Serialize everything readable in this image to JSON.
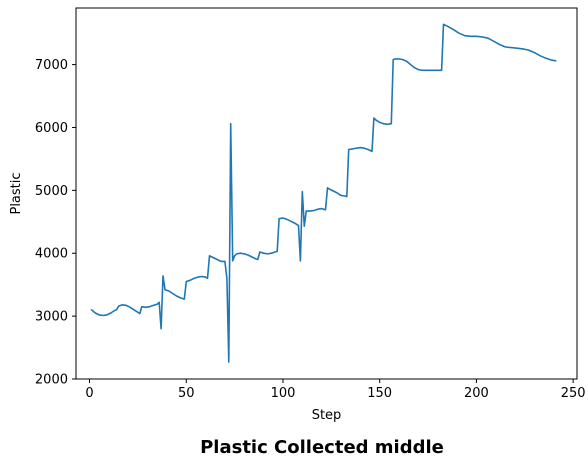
{
  "chart_data": {
    "type": "line",
    "title": "Plastic Collected middle",
    "xlabel": "Step",
    "ylabel": "Plastic",
    "xlim": [
      -7,
      252
    ],
    "ylim": [
      2000,
      7900
    ],
    "xticks": [
      0,
      50,
      100,
      150,
      200,
      250
    ],
    "yticks": [
      2000,
      3000,
      4000,
      5000,
      6000,
      7000
    ],
    "grid": false,
    "legend": "none",
    "series": [
      {
        "color": "#1f77b4",
        "x": [
          1,
          3,
          5,
          7,
          9,
          11,
          13,
          14,
          15,
          17,
          19,
          21,
          23,
          25,
          26,
          27,
          29,
          31,
          33,
          35,
          36,
          37,
          38,
          39,
          41,
          43,
          45,
          47,
          49,
          50,
          52,
          54,
          56,
          58,
          60,
          61,
          62,
          64,
          66,
          68,
          70,
          71,
          72,
          73,
          74,
          75,
          76,
          78,
          80,
          82,
          84,
          86,
          87,
          88,
          90,
          92,
          94,
          96,
          97,
          98,
          100,
          102,
          104,
          106,
          108,
          109,
          110,
          111,
          112,
          114,
          116,
          118,
          120,
          122,
          123,
          124,
          126,
          128,
          130,
          132,
          133,
          134,
          136,
          138,
          140,
          142,
          144,
          146,
          147,
          148,
          150,
          152,
          154,
          156,
          157,
          158,
          160,
          162,
          164,
          166,
          168,
          170,
          172,
          174,
          176,
          178,
          180,
          182,
          183,
          185,
          188,
          191,
          194,
          197,
          200,
          203,
          206,
          209,
          212,
          215,
          218,
          221,
          224,
          227,
          230,
          233,
          236,
          239,
          241
        ],
        "y": [
          3100,
          3050,
          3020,
          3010,
          3020,
          3050,
          3090,
          3100,
          3160,
          3180,
          3170,
          3140,
          3100,
          3060,
          3040,
          3150,
          3140,
          3150,
          3170,
          3190,
          3220,
          2800,
          3640,
          3420,
          3400,
          3360,
          3320,
          3290,
          3270,
          3550,
          3570,
          3600,
          3620,
          3630,
          3620,
          3600,
          3960,
          3930,
          3900,
          3870,
          3870,
          3600,
          2270,
          6060,
          3880,
          3960,
          3990,
          4000,
          3990,
          3970,
          3940,
          3910,
          3900,
          4020,
          4000,
          3990,
          4000,
          4020,
          4030,
          4550,
          4560,
          4540,
          4510,
          4480,
          4440,
          3880,
          4980,
          4430,
          4670,
          4670,
          4680,
          4700,
          4710,
          4690,
          5040,
          5020,
          4990,
          4960,
          4920,
          4910,
          4900,
          5650,
          5660,
          5670,
          5680,
          5670,
          5650,
          5620,
          6150,
          6120,
          6080,
          6060,
          6050,
          6060,
          7080,
          7090,
          7090,
          7080,
          7050,
          7000,
          6950,
          6920,
          6910,
          6910,
          6910,
          6910,
          6910,
          6910,
          7640,
          7610,
          7560,
          7500,
          7460,
          7450,
          7450,
          7440,
          7420,
          7370,
          7320,
          7280,
          7270,
          7260,
          7250,
          7230,
          7190,
          7140,
          7100,
          7070,
          7060
        ]
      }
    ]
  }
}
